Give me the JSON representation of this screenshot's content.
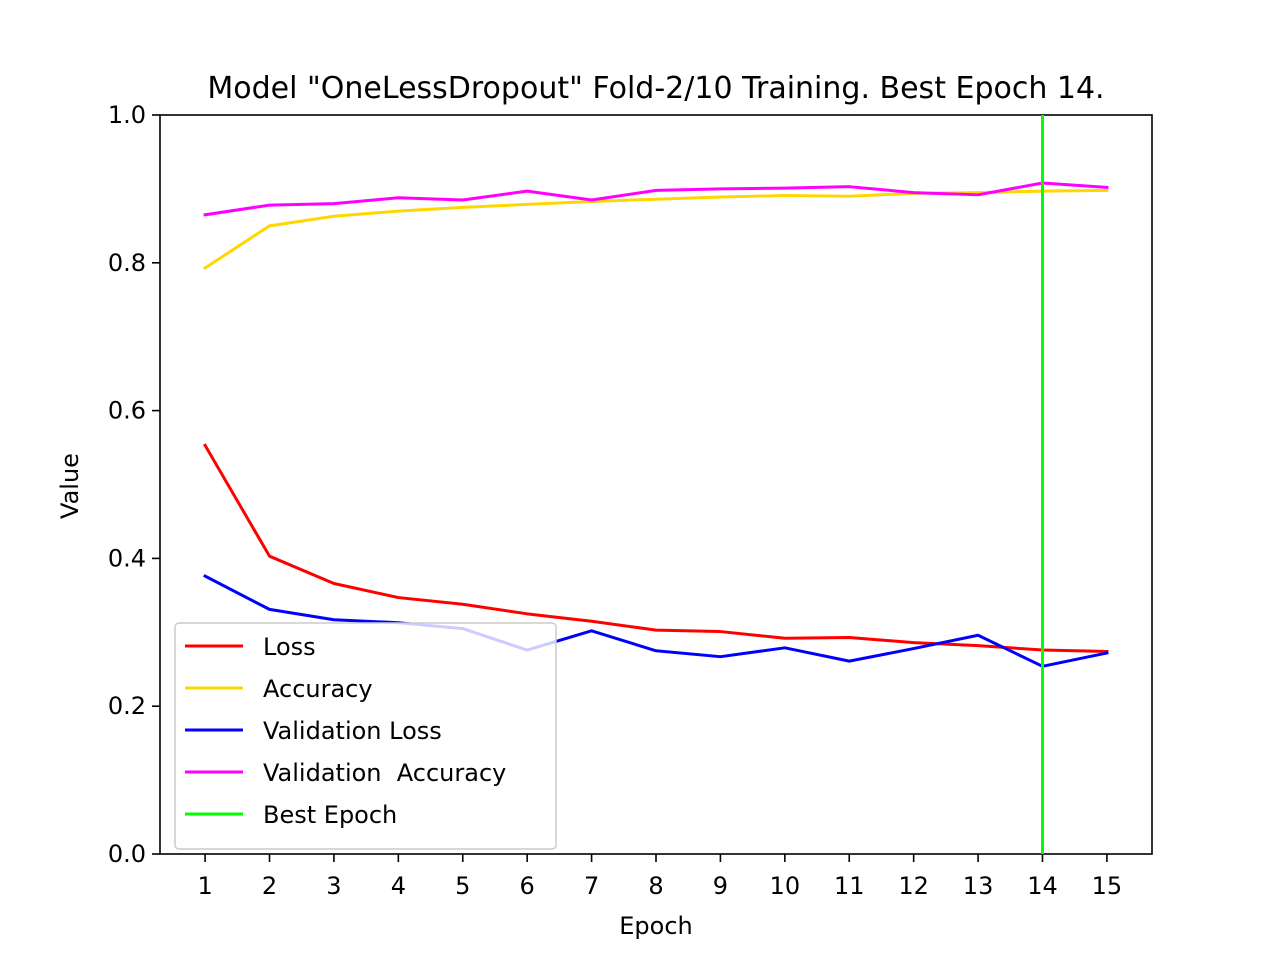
{
  "chart_data": {
    "type": "line",
    "title": "Model \"OneLessDropout\" Fold-2/10 Training. Best Epoch 14.",
    "xlabel": "Epoch",
    "ylabel": "Value",
    "xlim": [
      0.3,
      15.7
    ],
    "ylim": [
      0.0,
      1.0
    ],
    "x_ticks": [
      "1",
      "2",
      "3",
      "4",
      "5",
      "6",
      "7",
      "8",
      "9",
      "10",
      "11",
      "12",
      "13",
      "14",
      "15"
    ],
    "y_ticks": [
      "0.0",
      "0.2",
      "0.4",
      "0.6",
      "0.8",
      "1.0"
    ],
    "x": [
      1,
      2,
      3,
      4,
      5,
      6,
      7,
      8,
      9,
      10,
      11,
      12,
      13,
      14,
      15
    ],
    "grid": false,
    "legend_position": "lower-left",
    "series": [
      {
        "name": "Loss",
        "color": "#ff0000",
        "values": [
          0.553,
          0.403,
          0.366,
          0.347,
          0.338,
          0.325,
          0.315,
          0.303,
          0.301,
          0.292,
          0.293,
          0.286,
          0.282,
          0.276,
          0.274
        ]
      },
      {
        "name": "Accuracy",
        "color": "#ffd700",
        "values": [
          0.793,
          0.85,
          0.863,
          0.87,
          0.875,
          0.879,
          0.883,
          0.886,
          0.889,
          0.891,
          0.89,
          0.894,
          0.895,
          0.897,
          0.898
        ]
      },
      {
        "name": "Validation Loss",
        "color": "#0000ff",
        "values": [
          0.376,
          0.331,
          0.317,
          0.313,
          0.305,
          0.276,
          0.302,
          0.275,
          0.267,
          0.279,
          0.261,
          0.278,
          0.296,
          0.254,
          0.272
        ]
      },
      {
        "name": "Validation  Accuracy",
        "color": "#ff00ff",
        "values": [
          0.865,
          0.878,
          0.88,
          0.888,
          0.885,
          0.897,
          0.885,
          0.898,
          0.9,
          0.901,
          0.903,
          0.895,
          0.892,
          0.908,
          0.902
        ]
      }
    ],
    "best_epoch": {
      "name": "Best Epoch",
      "x": 14,
      "color": "#00ff00"
    }
  }
}
